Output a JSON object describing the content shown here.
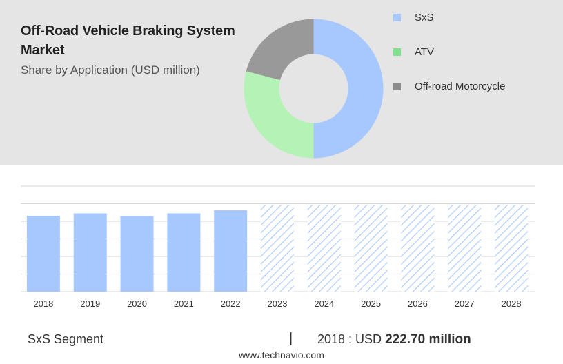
{
  "header": {
    "title": "Off-Road Vehicle Braking System Market",
    "subtitle": "Share by Application (USD million)"
  },
  "legend": [
    {
      "label": "SxS",
      "color": "#a6c8ff"
    },
    {
      "label": "ATV",
      "color": "#7ee08a"
    },
    {
      "label": "Off-road Motorcycle",
      "color": "#8c8c8c"
    }
  ],
  "chart_data": [
    {
      "type": "pie",
      "title": "Off-Road Vehicle Braking System Market",
      "subtitle": "Share by Application (USD million)",
      "categories": [
        "SxS",
        "ATV",
        "Off-road Motorcycle"
      ],
      "values": [
        50,
        29,
        21
      ],
      "colors": [
        "#a6c8ff",
        "#b5f2b5",
        "#999999"
      ],
      "donut": true
    },
    {
      "type": "bar",
      "categories": [
        "2018",
        "2019",
        "2020",
        "2021",
        "2022",
        "2023",
        "2024",
        "2025",
        "2026",
        "2027",
        "2028"
      ],
      "values": [
        222.7,
        230,
        222,
        230,
        239,
        255,
        255,
        255,
        255,
        255,
        255
      ],
      "forecast_from": "2023",
      "color": "#a6c8ff",
      "forecast_pattern": "hatched",
      "grid": true,
      "ylim": [
        0,
        310
      ]
    }
  ],
  "footer": {
    "segment_label": "SxS Segment",
    "separator": "|",
    "year_prefix": "2018 : USD",
    "value": "222.70 million",
    "source": "www.technavio.com"
  }
}
